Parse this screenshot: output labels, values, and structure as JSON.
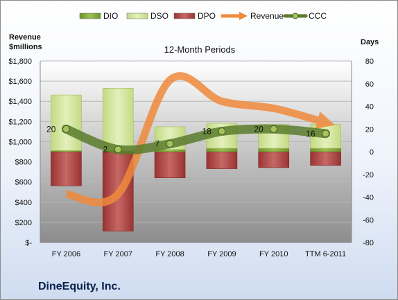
{
  "chart_data": {
    "type": "bar",
    "title": "12-Month Periods",
    "company": "DineEquity, Inc.",
    "categories": [
      "FY 2006",
      "FY 2007",
      "FY 2008",
      "FY 2009",
      "FY 2010",
      "TTM 6-2011"
    ],
    "left_axis": {
      "label_line1": "Revenue",
      "label_line2": "$millions",
      "ylim": [
        0,
        1800
      ],
      "ticks": [
        0,
        200,
        400,
        600,
        800,
        1000,
        1200,
        1400,
        1600,
        1800
      ],
      "tick_labels": [
        "$-",
        "$200",
        "$400",
        "$600",
        "$800",
        "$1,000",
        "$1,200",
        "$1,400",
        "$1,600",
        "$1,800"
      ]
    },
    "right_axis": {
      "label": "Days",
      "ylim": [
        -80,
        80
      ],
      "ticks": [
        -80,
        -60,
        -40,
        -20,
        0,
        20,
        40,
        60,
        80
      ],
      "tick_labels": [
        "-80",
        "-60",
        "-40",
        "-20",
        "0",
        "20",
        "40",
        "60",
        "80"
      ]
    },
    "legend": {
      "placement": "top",
      "items": [
        {
          "name": "DIO",
          "kind": "bar",
          "color": "#7fa33a"
        },
        {
          "name": "DSO",
          "kind": "bar",
          "color": "#d6e8a6"
        },
        {
          "name": "DPO",
          "kind": "bar",
          "color": "#b04846"
        },
        {
          "name": "Revenue",
          "kind": "arrow",
          "color": "#f08a3c"
        },
        {
          "name": "CCC",
          "kind": "line-marker",
          "color": "#5b7b2d"
        }
      ]
    },
    "series": [
      {
        "name": "DIO",
        "axis": "days",
        "values": [
          1,
          1,
          2,
          3,
          3,
          3
        ]
      },
      {
        "name": "DSO",
        "axis": "days",
        "values": [
          49,
          55,
          20,
          22,
          21,
          21
        ]
      },
      {
        "name": "DPO",
        "axis": "days",
        "values": [
          -30,
          -70,
          -23,
          -15,
          -14,
          -12
        ]
      },
      {
        "name": "Revenue",
        "axis": "revenue",
        "values": [
          480,
          480,
          1610,
          1400,
          1330,
          1190
        ]
      },
      {
        "name": "CCC",
        "axis": "days",
        "values": [
          20,
          2,
          7,
          18,
          20,
          16
        ]
      }
    ],
    "ccc_labels": [
      "20",
      "2",
      "7",
      "18",
      "20",
      "16"
    ],
    "colors": {
      "plot_top": "#ffffff",
      "plot_bottom": "#8c8c8c",
      "dio": "#7fa33a",
      "dso": "#d6e8a6",
      "dpo": "#b04846",
      "revenue": "#f08a3c",
      "ccc": "#5b7b2d"
    },
    "grid": true
  }
}
